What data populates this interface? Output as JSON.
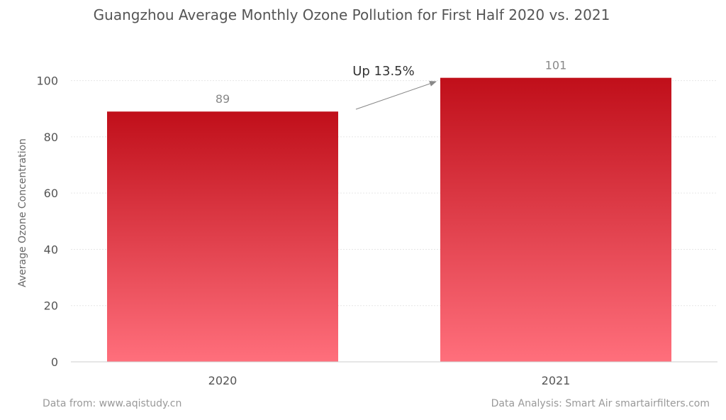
{
  "chart_data": {
    "type": "bar",
    "title": "Guangzhou Average Monthly Ozone Pollution for First Half 2020 vs. 2021",
    "xlabel": "",
    "ylabel": "Average Ozone Concentration",
    "categories": [
      "2020",
      "2021"
    ],
    "values": [
      89,
      101
    ],
    "data_labels": [
      "89",
      "101"
    ],
    "ylim": [
      0,
      110
    ],
    "yticks": [
      0,
      20,
      40,
      60,
      80,
      100
    ],
    "grid": true,
    "legend": "none",
    "annotation": "Up 13.5%",
    "colors": {
      "bar_top": "#c00f1a",
      "bar_bottom": "#ff6f7c",
      "grid": "#e6e6e6",
      "axis": "#cccccc",
      "arrow": "#888888"
    }
  },
  "footer": {
    "source": "Data from: www.aqistudy.cn",
    "credit": "Data Analysis: Smart Air smartairfilters.com"
  }
}
